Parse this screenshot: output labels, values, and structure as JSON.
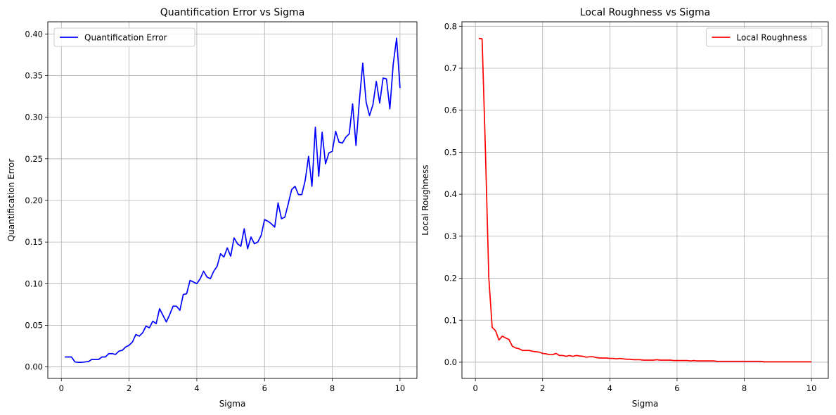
{
  "chart_data": [
    {
      "type": "line",
      "title": "Quantification Error vs Sigma",
      "xlabel": "Sigma",
      "ylabel": "Quantification Error",
      "xlim": [
        -0.4,
        10.5
      ],
      "ylim": [
        -0.0138,
        0.4146
      ],
      "xticks": [
        0,
        2,
        4,
        6,
        8,
        10
      ],
      "xtick_labels": [
        "0",
        "2",
        "4",
        "6",
        "8",
        "10"
      ],
      "yticks": [
        0.0,
        0.05,
        0.1,
        0.15,
        0.2,
        0.25,
        0.3,
        0.35,
        0.4
      ],
      "ytick_labels": [
        "0.00",
        "0.05",
        "0.10",
        "0.15",
        "0.20",
        "0.25",
        "0.30",
        "0.35",
        "0.40"
      ],
      "grid": true,
      "legend_position": "upper left",
      "series": [
        {
          "name": "Quantification Error",
          "color": "#0000ff",
          "x": [
            0.1,
            0.2,
            0.3,
            0.4,
            0.5,
            0.6,
            0.7,
            0.8,
            0.9,
            1.0,
            1.1,
            1.2,
            1.3,
            1.4,
            1.5,
            1.6,
            1.7,
            1.8,
            1.9,
            2.0,
            2.1,
            2.2,
            2.3,
            2.4,
            2.5,
            2.6,
            2.7,
            2.8,
            2.9,
            3.0,
            3.1,
            3.2,
            3.3,
            3.4,
            3.5,
            3.6,
            3.7,
            3.8,
            3.9,
            4.0,
            4.1,
            4.2,
            4.3,
            4.4,
            4.5,
            4.6,
            4.7,
            4.8,
            4.9,
            5.0,
            5.1,
            5.2,
            5.3,
            5.4,
            5.5,
            5.6,
            5.7,
            5.8,
            5.9,
            6.0,
            6.1,
            6.2,
            6.3,
            6.4,
            6.5,
            6.6,
            6.7,
            6.8,
            6.9,
            7.0,
            7.1,
            7.2,
            7.3,
            7.4,
            7.5,
            7.6,
            7.7,
            7.8,
            7.9,
            8.0,
            8.1,
            8.2,
            8.3,
            8.4,
            8.5,
            8.6,
            8.7,
            8.8,
            8.9,
            9.0,
            9.1,
            9.2,
            9.3,
            9.4,
            9.5,
            9.6,
            9.7,
            9.8,
            9.9,
            10.0
          ],
          "y": [
            0.012,
            0.012,
            0.012,
            0.006,
            0.0055,
            0.0055,
            0.006,
            0.0065,
            0.009,
            0.009,
            0.009,
            0.012,
            0.012,
            0.016,
            0.016,
            0.015,
            0.019,
            0.02,
            0.024,
            0.026,
            0.03,
            0.039,
            0.037,
            0.041,
            0.049,
            0.047,
            0.055,
            0.052,
            0.07,
            0.062,
            0.054,
            0.063,
            0.073,
            0.073,
            0.068,
            0.087,
            0.088,
            0.104,
            0.102,
            0.1,
            0.106,
            0.115,
            0.108,
            0.106,
            0.115,
            0.121,
            0.136,
            0.132,
            0.143,
            0.133,
            0.155,
            0.148,
            0.145,
            0.166,
            0.142,
            0.156,
            0.148,
            0.15,
            0.158,
            0.177,
            0.175,
            0.172,
            0.168,
            0.197,
            0.178,
            0.18,
            0.196,
            0.213,
            0.217,
            0.207,
            0.207,
            0.224,
            0.253,
            0.217,
            0.288,
            0.229,
            0.282,
            0.244,
            0.257,
            0.259,
            0.283,
            0.27,
            0.269,
            0.276,
            0.28,
            0.316,
            0.266,
            0.32,
            0.365,
            0.318,
            0.302,
            0.315,
            0.343,
            0.317,
            0.347,
            0.346,
            0.31,
            0.364,
            0.395,
            0.335
          ]
        }
      ]
    },
    {
      "type": "line",
      "title": "Local Roughness vs Sigma",
      "xlabel": "Sigma",
      "ylabel": "Local Roughness",
      "xlim": [
        -0.4,
        10.5
      ],
      "ylim": [
        -0.0386,
        0.8106
      ],
      "xticks": [
        0,
        2,
        4,
        6,
        8,
        10
      ],
      "xtick_labels": [
        "0",
        "2",
        "4",
        "6",
        "8",
        "10"
      ],
      "yticks": [
        0.0,
        0.1,
        0.2,
        0.3,
        0.4,
        0.5,
        0.6,
        0.7,
        0.8
      ],
      "ytick_labels": [
        "0.0",
        "0.1",
        "0.2",
        "0.3",
        "0.4",
        "0.5",
        "0.6",
        "0.7",
        "0.8"
      ],
      "grid": true,
      "legend_position": "upper right",
      "series": [
        {
          "name": "Local Roughness",
          "color": "#ff0000",
          "x": [
            0.1,
            0.2,
            0.3,
            0.4,
            0.5,
            0.6,
            0.7,
            0.8,
            0.9,
            1.0,
            1.1,
            1.2,
            1.3,
            1.4,
            1.5,
            1.6,
            1.7,
            1.8,
            1.9,
            2.0,
            2.1,
            2.2,
            2.3,
            2.4,
            2.5,
            2.6,
            2.7,
            2.8,
            2.9,
            3.0,
            3.1,
            3.2,
            3.3,
            3.4,
            3.5,
            3.6,
            3.7,
            3.8,
            3.9,
            4.0,
            4.1,
            4.2,
            4.3,
            4.4,
            4.5,
            4.6,
            4.7,
            4.8,
            4.9,
            5.0,
            5.1,
            5.2,
            5.3,
            5.4,
            5.5,
            5.6,
            5.7,
            5.8,
            5.9,
            6.0,
            6.1,
            6.2,
            6.3,
            6.4,
            6.5,
            6.6,
            6.7,
            6.8,
            6.9,
            7.0,
            7.1,
            7.2,
            7.3,
            7.4,
            7.5,
            7.6,
            7.7,
            7.8,
            7.9,
            8.0,
            8.1,
            8.2,
            8.3,
            8.4,
            8.5,
            8.6,
            8.7,
            8.8,
            8.9,
            9.0,
            9.1,
            9.2,
            9.3,
            9.4,
            9.5,
            9.6,
            9.7,
            9.8,
            9.9,
            10.0
          ],
          "y": [
            0.771,
            0.77,
            0.5,
            0.2,
            0.083,
            0.075,
            0.053,
            0.062,
            0.058,
            0.054,
            0.038,
            0.034,
            0.032,
            0.028,
            0.028,
            0.028,
            0.026,
            0.025,
            0.024,
            0.021,
            0.02,
            0.018,
            0.018,
            0.021,
            0.016,
            0.016,
            0.014,
            0.016,
            0.014,
            0.016,
            0.015,
            0.014,
            0.012,
            0.013,
            0.013,
            0.011,
            0.01,
            0.01,
            0.01,
            0.009,
            0.009,
            0.008,
            0.009,
            0.008,
            0.007,
            0.007,
            0.006,
            0.006,
            0.006,
            0.005,
            0.005,
            0.005,
            0.005,
            0.006,
            0.005,
            0.005,
            0.005,
            0.005,
            0.004,
            0.004,
            0.004,
            0.004,
            0.004,
            0.003,
            0.004,
            0.003,
            0.003,
            0.003,
            0.003,
            0.003,
            0.003,
            0.002,
            0.002,
            0.002,
            0.002,
            0.002,
            0.002,
            0.002,
            0.002,
            0.002,
            0.002,
            0.002,
            0.002,
            0.002,
            0.002,
            0.001,
            0.001,
            0.001,
            0.001,
            0.001,
            0.001,
            0.001,
            0.001,
            0.001,
            0.001,
            0.001,
            0.001,
            0.001,
            0.001,
            0.001
          ]
        }
      ]
    }
  ]
}
